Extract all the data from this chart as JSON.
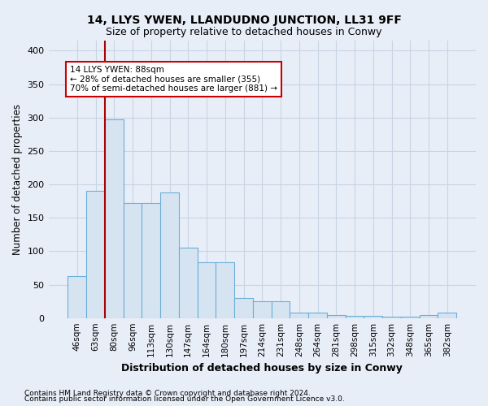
{
  "title": "14, LLYS YWEN, LLANDUDNO JUNCTION, LL31 9FF",
  "subtitle": "Size of property relative to detached houses in Conwy",
  "xlabel": "Distribution of detached houses by size in Conwy",
  "ylabel": "Number of detached properties",
  "categories": [
    "46sqm",
    "63sqm",
    "80sqm",
    "96sqm",
    "113sqm",
    "130sqm",
    "147sqm",
    "164sqm",
    "180sqm",
    "197sqm",
    "214sqm",
    "231sqm",
    "248sqm",
    "264sqm",
    "281sqm",
    "298sqm",
    "315sqm",
    "332sqm",
    "348sqm",
    "365sqm",
    "382sqm"
  ],
  "values": [
    63,
    190,
    297,
    172,
    172,
    188,
    105,
    83,
    83,
    30,
    25,
    25,
    8,
    8,
    5,
    3,
    3,
    2,
    2,
    5,
    8
  ],
  "bar_color": "#d6e4f2",
  "bar_edge_color": "#6baed6",
  "bar_linewidth": 0.8,
  "property_line_color": "#aa0000",
  "annotation_text": "14 LLYS YWEN: 88sqm\n← 28% of detached houses are smaller (355)\n70% of semi-detached houses are larger (881) →",
  "annotation_box_color": "white",
  "annotation_box_edge": "#cc0000",
  "ylim": [
    0,
    415
  ],
  "yticks": [
    0,
    50,
    100,
    150,
    200,
    250,
    300,
    350,
    400
  ],
  "grid_color": "#c8d4e4",
  "background_color": "#e8eef8",
  "footer1": "Contains HM Land Registry data © Crown copyright and database right 2024.",
  "footer2": "Contains public sector information licensed under the Open Government Licence v3.0."
}
